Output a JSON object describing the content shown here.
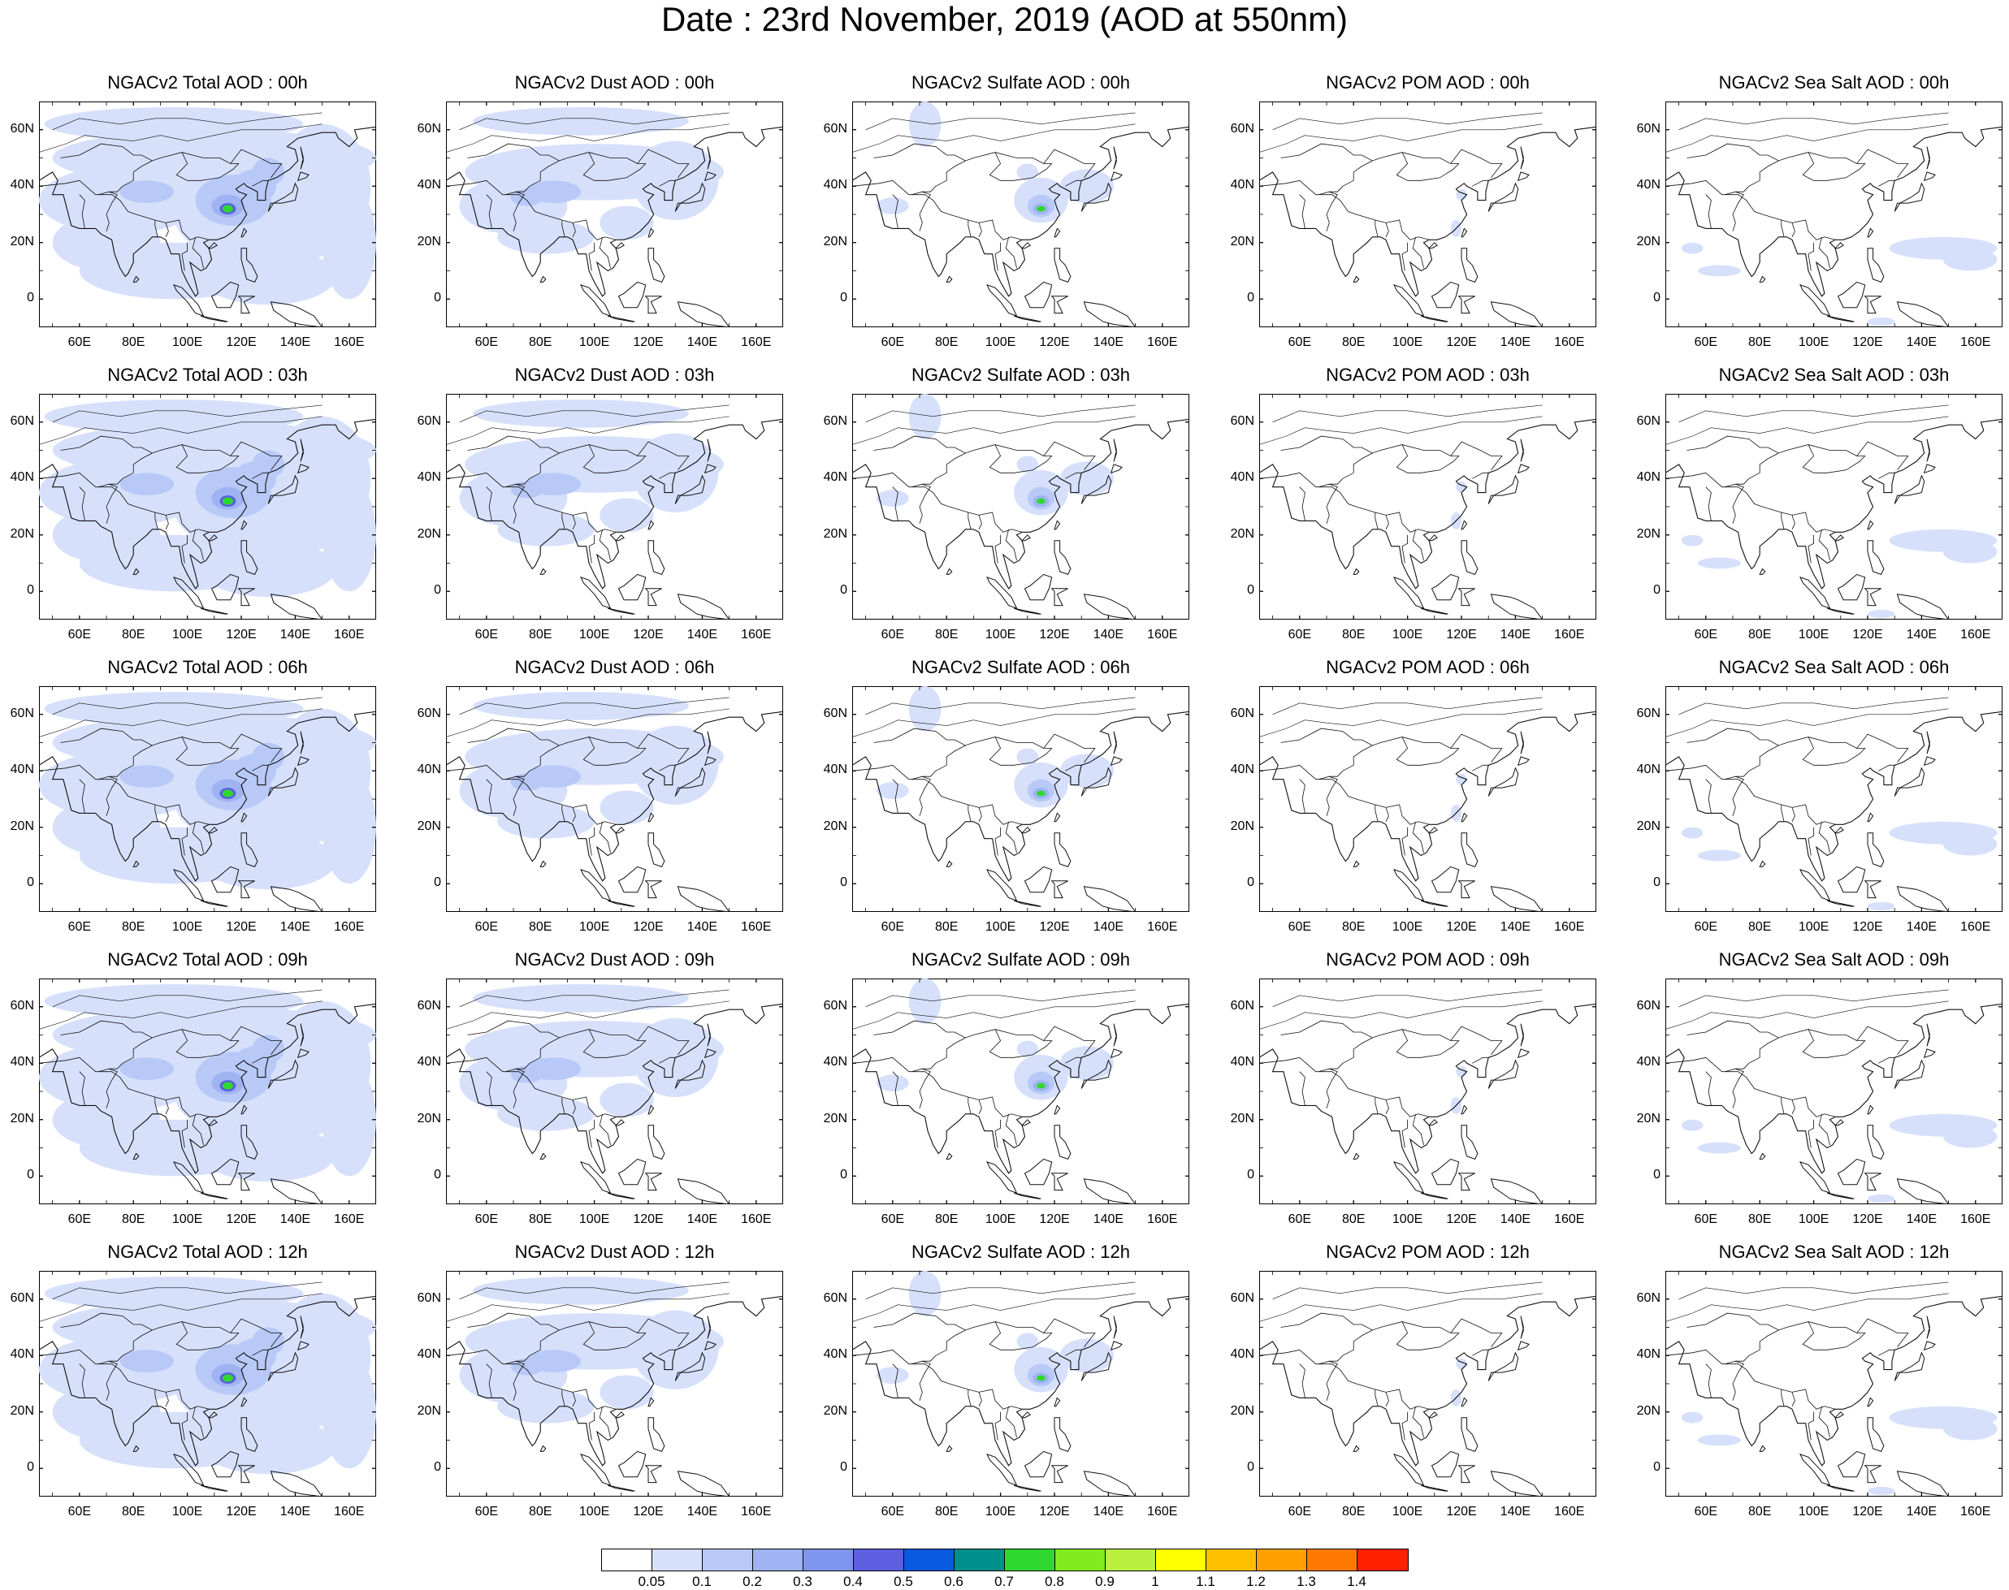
{
  "title": "Date : 23rd November, 2019 (AOD at 550nm)",
  "panels": [
    [
      "NGACv2 Total AOD : 00h",
      "NGACv2 Dust AOD : 00h",
      "NGACv2 Sulfate AOD : 00h",
      "NGACv2 POM AOD : 00h",
      "NGACv2 Sea Salt AOD : 00h"
    ],
    [
      "NGACv2 Total AOD : 03h",
      "NGACv2 Dust AOD : 03h",
      "NGACv2 Sulfate AOD : 03h",
      "NGACv2 POM AOD : 03h",
      "NGACv2 Sea Salt AOD : 03h"
    ],
    [
      "NGACv2 Total AOD : 06h",
      "NGACv2 Dust AOD : 06h",
      "NGACv2 Sulfate AOD : 06h",
      "NGACv2 POM AOD : 06h",
      "NGACv2 Sea Salt AOD : 06h"
    ],
    [
      "NGACv2 Total AOD : 09h",
      "NGACv2 Dust AOD : 09h",
      "NGACv2 Sulfate AOD : 09h",
      "NGACv2 POM AOD : 09h",
      "NGACv2 Sea Salt  AOD : 09h"
    ],
    [
      "NGACv2 Total AOD  : 12h",
      "NGACv2 Dust AOD : 12h",
      "NGACv2 Sulfate AOD : 12h",
      "NGACv2 POM  AOD : 12h",
      "NGACv2 Sea Salt  AOD : 12h"
    ]
  ],
  "lat_labels": [
    "60N",
    "40N",
    "20N",
    "0"
  ],
  "lon_labels": [
    "60E",
    "80E",
    "100E",
    "120E",
    "140E",
    "160E"
  ],
  "colorbar": {
    "labels": [
      "0.05",
      "0.1",
      "0.2",
      "0.3",
      "0.4",
      "0.5",
      "0.6",
      "0.7",
      "0.8",
      "0.9",
      "1",
      "1.1",
      "1.2",
      "1.3",
      "1.4"
    ],
    "colors": [
      "#ffffff",
      "#d6e0fb",
      "#b8c9f7",
      "#9fb3f3",
      "#7f96ee",
      "#5b5fe0",
      "#0a5ae0",
      "#00908c",
      "#2ed82e",
      "#80ea1e",
      "#b8f040",
      "#ffff00",
      "#ffc000",
      "#ffa000",
      "#ff7a00",
      "#ff2000"
    ]
  }
}
